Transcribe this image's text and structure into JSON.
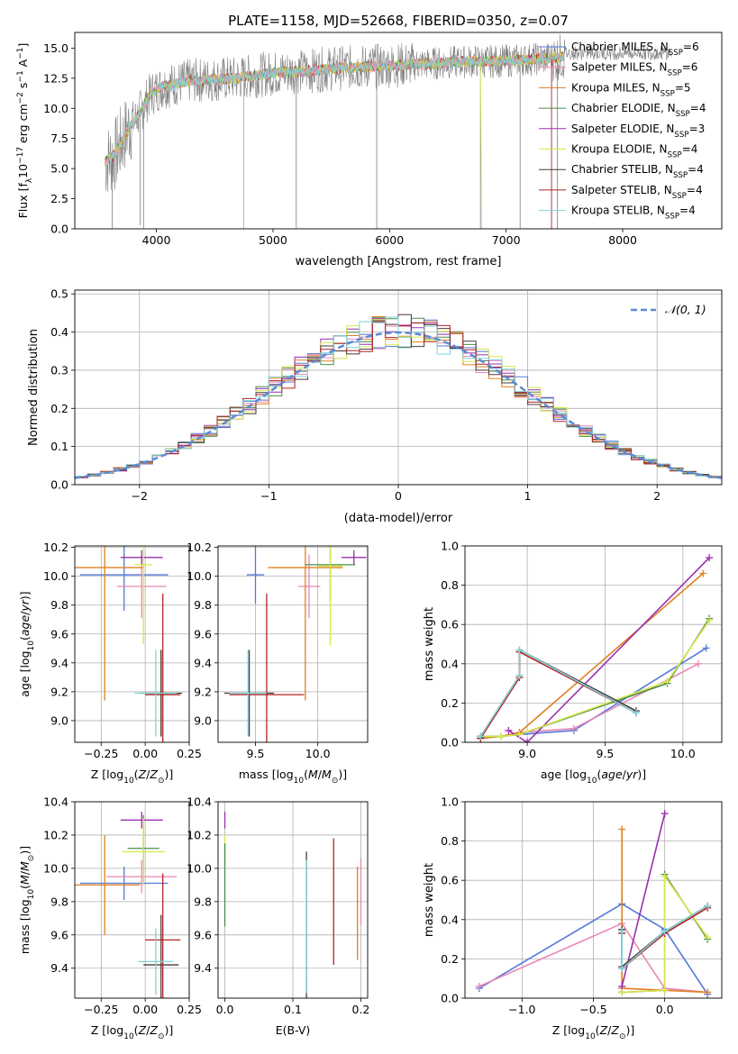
{
  "colors": {
    "chabrier_miles": "#5577d9",
    "salpeter_miles": "#e887b6",
    "kroupa_miles": "#e0801f",
    "chabrier_elodie": "#4b8c4b",
    "salpeter_elodie": "#9b2fae",
    "kroupa_elodie": "#d7e84d",
    "chabrier_stelib": "#4a3a3a",
    "salpeter_stelib": "#b22222",
    "kroupa_stelib": "#7fd3d9",
    "grid": "#b0b0b0",
    "gauss": "#5b8ad6",
    "spectrum_obs": "#808080"
  },
  "chart_data": [
    {
      "type": "line",
      "title": "PLATE=1158, MJD=52668, FIBERID=0350, z=0.07",
      "xlabel": "wavelength [Angstrom, rest frame]",
      "ylabel": "Flux [f_λ 10^-17 erg cm^-2 s^-1 A^-1]",
      "xlim": [
        3300,
        8850
      ],
      "ylim": [
        0,
        16.3
      ],
      "xticks": [
        4000,
        5000,
        6000,
        7000,
        8000
      ],
      "yticks": [
        0.0,
        2.5,
        5.0,
        7.5,
        10.0,
        12.5,
        15.0
      ],
      "ytick_labels": [
        "0.0",
        "2.5",
        "5.0",
        "7.5",
        "10.0",
        "12.5",
        "15.0"
      ],
      "grid": false,
      "legend_position": "right",
      "legend": [
        {
          "label": "Chabrier MILES, N",
          "sub": "SSP",
          "eq": "=6",
          "color": "chabrier_miles"
        },
        {
          "label": "Salpeter MILES, N",
          "sub": "SSP",
          "eq": "=6",
          "color": "salpeter_miles"
        },
        {
          "label": "Kroupa MILES, N",
          "sub": "SSP",
          "eq": "=5",
          "color": "kroupa_miles"
        },
        {
          "label": "Chabrier ELODIE, N",
          "sub": "SSP",
          "eq": "=4",
          "color": "chabrier_elodie"
        },
        {
          "label": "Salpeter ELODIE, N",
          "sub": "SSP",
          "eq": "=3",
          "color": "salpeter_elodie"
        },
        {
          "label": "Kroupa ELODIE, N",
          "sub": "SSP",
          "eq": "=4",
          "color": "kroupa_elodie"
        },
        {
          "label": "Chabrier STELIB, N",
          "sub": "SSP",
          "eq": "=4",
          "color": "chabrier_stelib"
        },
        {
          "label": "Salpeter STELIB, N",
          "sub": "SSP",
          "eq": "=4",
          "color": "salpeter_stelib"
        },
        {
          "label": "Kroupa STELIB, N",
          "sub": "SSP",
          "eq": "=4",
          "color": "kroupa_stelib"
        }
      ],
      "continuum": {
        "x": [
          3550,
          3650,
          3750,
          3850,
          3950,
          4050,
          4150,
          4300,
          4500,
          4700,
          4900,
          5100,
          5300,
          5500,
          5700,
          5900,
          6100,
          6300,
          6500,
          6700,
          6900,
          7100,
          7300,
          7500
        ],
        "y": [
          5.5,
          6.2,
          8.2,
          9.5,
          11.2,
          11.8,
          12.0,
          12.3,
          12.4,
          12.5,
          12.8,
          13.0,
          13.1,
          13.3,
          13.4,
          13.5,
          13.6,
          13.7,
          13.8,
          13.9,
          13.9,
          14.0,
          14.1,
          14.3
        ]
      },
      "spikes": [
        {
          "x": 3620,
          "y": 0.0
        },
        {
          "x": 3860,
          "y": 0.3
        },
        {
          "x": 3890,
          "y": 0.0
        },
        {
          "x": 4750,
          "y": 0.0
        },
        {
          "x": 5200,
          "y": 0.0
        },
        {
          "x": 5890,
          "y": 0.0
        },
        {
          "x": 6780,
          "y": 0.0
        },
        {
          "x": 7120,
          "y": 0.0
        },
        {
          "x": 7390,
          "y": 0.0
        },
        {
          "x": 7440,
          "y": 0.0
        }
      ]
    },
    {
      "type": "step",
      "xlabel": "(data-model)/error",
      "ylabel": "Normed distribution",
      "xlim": [
        -2.5,
        2.5
      ],
      "ylim": [
        0,
        0.51
      ],
      "xticks": [
        -2,
        -1,
        0,
        1,
        2
      ],
      "yticks": [
        0.0,
        0.1,
        0.2,
        0.3,
        0.4,
        0.5
      ],
      "grid": true,
      "legend": [
        {
          "label": "𝒩(0, 1)",
          "color": "gauss",
          "style": "dashed"
        }
      ],
      "bin_width": 0.1
    },
    {
      "type": "scatter",
      "xlabel": "Z [log10(Z/Z⊙)]",
      "ylabel": "age  [log10(age/yr)]",
      "xlim": [
        -0.4,
        0.25
      ],
      "ylim": [
        8.85,
        10.21
      ],
      "xticks": [
        -0.25,
        0.0,
        0.25
      ],
      "xtick_labels": [
        "−0.25",
        "0.00",
        "0.25"
      ],
      "yticks": [
        9.0,
        9.2,
        9.4,
        9.6,
        9.8,
        10.0,
        10.2
      ],
      "grid": true,
      "points": [
        {
          "color": "chabrier_miles",
          "x": -0.12,
          "y": 10.01,
          "xerr": 0.25,
          "yerr": 0.25
        },
        {
          "color": "salpeter_miles",
          "x": -0.02,
          "y": 9.93,
          "xerr": 0.14,
          "yerr": 0.22
        },
        {
          "color": "kroupa_miles",
          "x": -0.23,
          "y": 10.06,
          "xerr": 0.22,
          "yerr": 0.92
        },
        {
          "color": "chabrier_elodie",
          "x": 0.09,
          "y": 9.19,
          "xerr": 0.09,
          "yerr": 0.3
        },
        {
          "color": "salpeter_elodie",
          "x": -0.02,
          "y": 10.13,
          "xerr": 0.12,
          "yerr": 0.05
        },
        {
          "color": "kroupa_elodie",
          "x": -0.01,
          "y": 10.08,
          "xerr": 0.05,
          "yerr": 0.55
        },
        {
          "color": "chabrier_stelib",
          "x": 0.09,
          "y": 9.19,
          "xerr": 0.12,
          "yerr": 0.3
        },
        {
          "color": "salpeter_stelib",
          "x": 0.1,
          "y": 9.18,
          "xerr": 0.1,
          "yerr": 0.7
        },
        {
          "color": "kroupa_stelib",
          "x": 0.06,
          "y": 9.19,
          "xerr": 0.12,
          "yerr": 0.3
        }
      ]
    },
    {
      "type": "scatter",
      "xlabel": "mass [log10(M/M⊙)]",
      "ylabel": "",
      "xlim": [
        9.2,
        10.4
      ],
      "ylim": [
        8.85,
        10.21
      ],
      "xticks": [
        9.5,
        10.0
      ],
      "xtick_labels": [
        "9.5",
        "10.0"
      ],
      "yticks": [
        9.0,
        9.2,
        9.4,
        9.6,
        9.8,
        10.0,
        10.2
      ],
      "grid": true,
      "points": [
        {
          "color": "chabrier_miles",
          "x": 9.5,
          "y": 10.01,
          "xerr": 0.07,
          "yerr": 0.2
        },
        {
          "color": "salpeter_miles",
          "x": 9.93,
          "y": 9.93,
          "xerr": 0.09,
          "yerr": 0.22
        },
        {
          "color": "kroupa_miles",
          "x": 9.9,
          "y": 10.06,
          "xerr": 0.3,
          "yerr": 0.92
        },
        {
          "color": "chabrier_elodie",
          "x": 10.1,
          "y": 10.08,
          "xerr": 0.2,
          "yerr": 0.25
        },
        {
          "color": "salpeter_elodie",
          "x": 10.29,
          "y": 10.13,
          "xerr": 0.1,
          "yerr": 0.05
        },
        {
          "color": "kroupa_elodie",
          "x": 10.1,
          "y": 10.07,
          "xerr": 0.1,
          "yerr": 0.55
        },
        {
          "color": "chabrier_stelib",
          "x": 9.45,
          "y": 9.19,
          "xerr": 0.2,
          "yerr": 0.3
        },
        {
          "color": "salpeter_stelib",
          "x": 9.59,
          "y": 9.18,
          "xerr": 0.3,
          "yerr": 0.7
        },
        {
          "color": "kroupa_stelib",
          "x": 9.44,
          "y": 9.19,
          "xerr": 0.15,
          "yerr": 0.3
        }
      ]
    },
    {
      "type": "line",
      "xlabel": "age  [log10(age/yr)]",
      "ylabel": "mass weight",
      "xlim": [
        8.6,
        10.25
      ],
      "ylim": [
        0,
        1.0
      ],
      "xticks": [
        9.0,
        9.5,
        10.0
      ],
      "xtick_labels": [
        "9.0",
        "9.5",
        "10.0"
      ],
      "yticks": [
        0.0,
        0.2,
        0.4,
        0.6,
        0.8,
        1.0
      ],
      "grid": true,
      "series": [
        {
          "color": "chabrier_miles",
          "x": [
            8.7,
            8.83,
            8.95,
            9.3,
            10.15
          ],
          "y": [
            0.02,
            0.03,
            0.04,
            0.06,
            0.48
          ]
        },
        {
          "color": "salpeter_miles",
          "x": [
            8.7,
            8.83,
            8.95,
            9.3,
            10.1
          ],
          "y": [
            0.03,
            0.03,
            0.05,
            0.07,
            0.4
          ]
        },
        {
          "color": "kroupa_miles",
          "x": [
            8.7,
            8.83,
            8.95,
            10.13
          ],
          "y": [
            0.02,
            0.03,
            0.05,
            0.86
          ]
        },
        {
          "color": "chabrier_elodie",
          "x": [
            8.7,
            8.83,
            8.95,
            9.9,
            10.17
          ],
          "y": [
            0.03,
            0.03,
            0.04,
            0.3,
            0.63
          ]
        },
        {
          "color": "salpeter_elodie",
          "x": [
            8.88,
            9.0,
            10.17
          ],
          "y": [
            0.06,
            0.0,
            0.94
          ]
        },
        {
          "color": "kroupa_elodie",
          "x": [
            8.7,
            8.83,
            8.95,
            9.9,
            10.17
          ],
          "y": [
            0.03,
            0.03,
            0.04,
            0.31,
            0.62
          ]
        },
        {
          "color": "chabrier_stelib",
          "x": [
            8.7,
            8.95,
            8.95,
            9.7
          ],
          "y": [
            0.03,
            0.34,
            0.47,
            0.16
          ]
        },
        {
          "color": "salpeter_stelib",
          "x": [
            8.7,
            8.95,
            8.95,
            9.7
          ],
          "y": [
            0.02,
            0.33,
            0.46,
            0.15
          ]
        },
        {
          "color": "kroupa_stelib",
          "x": [
            8.7,
            8.95,
            8.95,
            9.7
          ],
          "y": [
            0.03,
            0.34,
            0.47,
            0.15
          ]
        }
      ]
    },
    {
      "type": "scatter",
      "xlabel": "Z [log10(Z/Z⊙)]",
      "ylabel": "mass [log10(M/M⊙)]",
      "xlim": [
        -0.4,
        0.25
      ],
      "ylim": [
        9.22,
        10.4
      ],
      "xticks": [
        -0.25,
        0.0,
        0.25
      ],
      "xtick_labels": [
        "−0.25",
        "0.00",
        "0.25"
      ],
      "yticks": [
        9.4,
        9.6,
        9.8,
        10.0,
        10.2,
        10.4
      ],
      "grid": true,
      "points": [
        {
          "color": "chabrier_miles",
          "x": -0.12,
          "y": 9.91,
          "xerr": 0.25,
          "yerr": 0.1
        },
        {
          "color": "salpeter_miles",
          "x": -0.02,
          "y": 9.95,
          "xerr": 0.2,
          "yerr": 0.1
        },
        {
          "color": "kroupa_miles",
          "x": -0.23,
          "y": 9.9,
          "xerr": 0.2,
          "yerr": 0.3
        },
        {
          "color": "chabrier_elodie",
          "x": -0.01,
          "y": 10.12,
          "xerr": 0.09,
          "yerr": 0.2
        },
        {
          "color": "salpeter_elodie",
          "x": -0.02,
          "y": 10.29,
          "xerr": 0.12,
          "yerr": 0.05
        },
        {
          "color": "kroupa_elodie",
          "x": -0.01,
          "y": 10.1,
          "xerr": 0.12,
          "yerr": 0.2
        },
        {
          "color": "chabrier_stelib",
          "x": 0.09,
          "y": 9.42,
          "xerr": 0.1,
          "yerr": 0.3
        },
        {
          "color": "salpeter_stelib",
          "x": 0.1,
          "y": 9.57,
          "xerr": 0.1,
          "yerr": 0.4
        },
        {
          "color": "kroupa_stelib",
          "x": 0.06,
          "y": 9.44,
          "xerr": 0.1,
          "yerr": 0.2
        }
      ]
    },
    {
      "type": "scatter",
      "xlabel": "E(B-V)",
      "ylabel": "",
      "xlim": [
        -0.01,
        0.21
      ],
      "ylim": [
        9.22,
        10.4
      ],
      "xticks": [
        0.0,
        0.1,
        0.2
      ],
      "xtick_labels": [
        "0.0",
        "0.1",
        "0.2"
      ],
      "yticks": [
        9.4,
        9.6,
        9.8,
        10.0,
        10.2,
        10.4
      ],
      "grid": true,
      "points": [
        {
          "color": "salpeter_elodie",
          "x": 0.0,
          "y": 10.29,
          "xerr": 0.0,
          "yerr": 0.05
        },
        {
          "color": "kroupa_elodie",
          "x": 0.0,
          "y": 10.1,
          "xerr": 0.0,
          "yerr": 0.1
        },
        {
          "color": "chabrier_elodie",
          "x": 0.0,
          "y": 9.9,
          "xerr": 0.0,
          "yerr": 0.25
        },
        {
          "color": "chabrier_stelib",
          "x": 0.12,
          "y": 9.6,
          "xerr": 0.0,
          "yerr": 0.5
        },
        {
          "color": "kroupa_stelib",
          "x": 0.12,
          "y": 9.65,
          "xerr": 0.0,
          "yerr": 0.4
        },
        {
          "color": "salpeter_stelib",
          "x": 0.16,
          "y": 9.8,
          "xerr": 0.0,
          "yerr": 0.38
        },
        {
          "color": "kroupa_miles",
          "x": 0.195,
          "y": 9.73,
          "xerr": 0.0,
          "yerr": 0.28
        },
        {
          "color": "salpeter_miles",
          "x": 0.2,
          "y": 9.86,
          "xerr": 0.0,
          "yerr": 0.2
        }
      ]
    },
    {
      "type": "line",
      "xlabel": "Z [log10(Z/Z⊙)]",
      "ylabel": "mass weight",
      "xlim": [
        -1.4,
        0.4
      ],
      "ylim": [
        0,
        1.0
      ],
      "xticks": [
        -1.0,
        -0.5,
        0.0
      ],
      "xtick_labels": [
        "−1.0",
        "−0.5",
        "0.0"
      ],
      "yticks": [
        0.0,
        0.2,
        0.4,
        0.6,
        0.8,
        1.0
      ],
      "grid": true,
      "series": [
        {
          "color": "chabrier_miles",
          "x": [
            -1.3,
            -0.3,
            0.0,
            0.3
          ],
          "y": [
            0.05,
            0.48,
            0.35,
            0.02
          ]
        },
        {
          "color": "salpeter_miles",
          "x": [
            -1.3,
            -0.3,
            0.0,
            0.3
          ],
          "y": [
            0.06,
            0.38,
            0.05,
            0.03
          ]
        },
        {
          "color": "kroupa_miles",
          "x": [
            -0.3,
            -0.3,
            0.0,
            0.3
          ],
          "y": [
            0.86,
            0.05,
            0.04,
            0.03
          ]
        },
        {
          "color": "chabrier_elodie",
          "x": [
            -0.3,
            0.0,
            0.0,
            0.3
          ],
          "y": [
            0.03,
            0.04,
            0.63,
            0.3
          ]
        },
        {
          "color": "salpeter_elodie",
          "x": [
            -0.3,
            -0.3,
            0.0
          ],
          "y": [
            0.03,
            0.06,
            0.94
          ]
        },
        {
          "color": "kroupa_elodie",
          "x": [
            -0.3,
            0.0,
            0.0,
            0.3
          ],
          "y": [
            0.03,
            0.04,
            0.62,
            0.31
          ]
        },
        {
          "color": "chabrier_stelib",
          "x": [
            -0.3,
            -0.3,
            0.0,
            0.3
          ],
          "y": [
            0.35,
            0.16,
            0.34,
            0.47
          ]
        },
        {
          "color": "salpeter_stelib",
          "x": [
            -0.3,
            -0.3,
            0.0,
            0.3
          ],
          "y": [
            0.33,
            0.15,
            0.33,
            0.46
          ]
        },
        {
          "color": "kroupa_stelib",
          "x": [
            -0.3,
            -0.3,
            0.0,
            0.3
          ],
          "y": [
            0.34,
            0.15,
            0.34,
            0.47
          ]
        }
      ]
    }
  ]
}
